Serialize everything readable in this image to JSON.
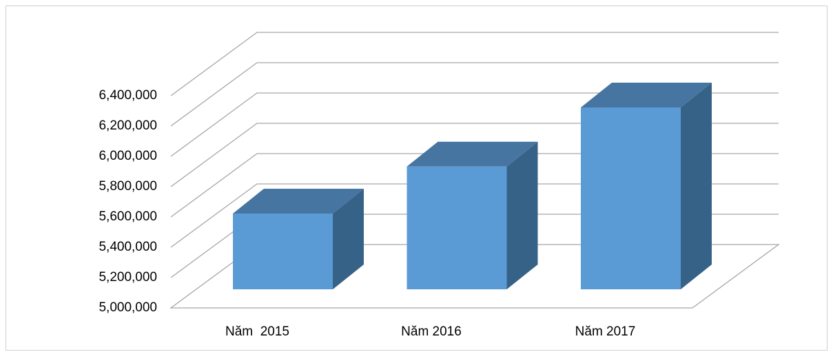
{
  "chart_data": {
    "type": "bar3d",
    "categories": [
      "Năm  2015",
      "Năm 2016",
      "Năm 2017"
    ],
    "values": [
      5500000,
      5810000,
      6200000
    ],
    "color": "#5b9bd5",
    "ylim": [
      5000000,
      6400000
    ],
    "yticks": [
      {
        "value": 5000000,
        "label": "5,000,000"
      },
      {
        "value": 5200000,
        "label": "5,200,000"
      },
      {
        "value": 5400000,
        "label": "5,400,000"
      },
      {
        "value": 5600000,
        "label": "5,600,000"
      },
      {
        "value": 5800000,
        "label": "5,800,000"
      },
      {
        "value": 6000000,
        "label": "6,000,000"
      },
      {
        "value": 6200000,
        "label": "6,200,000"
      },
      {
        "value": 6400000,
        "label": "6,400,000"
      }
    ],
    "grid": true
  }
}
